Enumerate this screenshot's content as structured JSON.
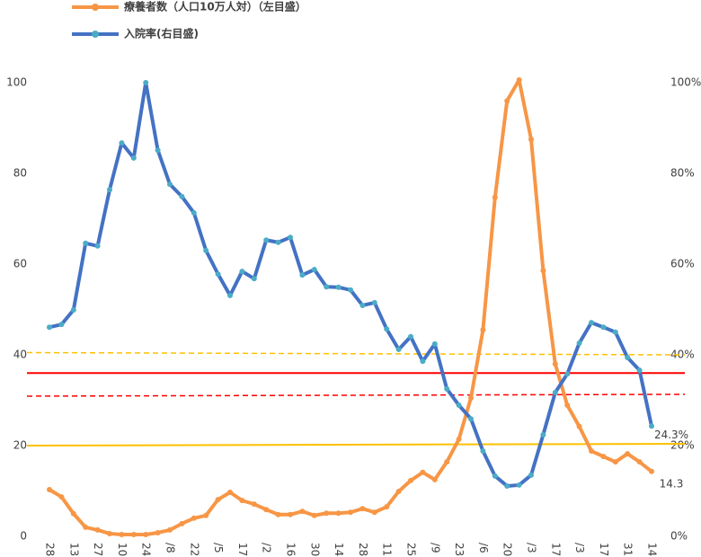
{
  "chart_data": {
    "type": "line",
    "categories": [
      "28",
      null,
      "13",
      null,
      "27",
      null,
      "10",
      null,
      "24",
      null,
      "/8",
      null,
      "22",
      null,
      "/5",
      null,
      "17",
      null,
      "/2",
      null,
      "16",
      null,
      "30",
      null,
      "14",
      null,
      "28",
      null,
      "11",
      null,
      "25",
      null,
      "/9",
      null,
      "23",
      null,
      "/6",
      null,
      "20",
      null,
      "/3",
      null,
      "17",
      null,
      "/3",
      null,
      "17",
      null,
      "31",
      null,
      "14"
    ],
    "series": [
      {
        "name": "療養者数（人口10万人対）（左目盛）",
        "color": "#f79646",
        "marker_color": "#f79646",
        "values": [
          10.3,
          8.7,
          5.0,
          2.0,
          1.4,
          0.6,
          0.4,
          0.4,
          0.4,
          0.8,
          1.4,
          2.8,
          4.0,
          4.6,
          8.1,
          9.7,
          7.9,
          7.1,
          5.9,
          4.8,
          4.8,
          5.5,
          4.6,
          5.1,
          5.1,
          5.3,
          6.1,
          5.3,
          6.5,
          9.9,
          12.3,
          14.1,
          12.5,
          16.4,
          21.4,
          30.5,
          45.5,
          74.7,
          96.0,
          100.6,
          87.5,
          58.6,
          38.0,
          28.9,
          24.2,
          18.8,
          17.6,
          16.4,
          18.2,
          16.4,
          14.3
        ],
        "value_labels": {
          "50": "14.3"
        }
      },
      {
        "name": "入院率(右目盛)",
        "color": "#4472c4",
        "marker_color": "#4bacc6",
        "axis": "y2",
        "values": [
          46.1,
          46.7,
          49.9,
          64.6,
          64.0,
          76.4,
          86.7,
          83.4,
          100,
          85.1,
          77.6,
          74.9,
          71.3,
          63.0,
          57.8,
          53.1,
          58.4,
          56.8,
          65.3,
          64.8,
          65.9,
          57.6,
          58.8,
          55.0,
          54.9,
          54.3,
          50.9,
          51.5,
          45.7,
          41.2,
          44.0,
          38.6,
          42.4,
          32.5,
          28.9,
          25.9,
          18.8,
          13.3,
          11.1,
          11.3,
          13.5,
          22.4,
          31.7,
          35.8,
          42.6,
          47.1,
          46.1,
          45.0,
          39.4,
          36.6,
          24.3
        ],
        "value_labels": {
          "50": "24.3%"
        }
      }
    ],
    "hlines": [
      {
        "color": "#ffc000",
        "dashed": true,
        "values": [
          40.5,
          40.0
        ]
      },
      {
        "color": "#ff0000",
        "dashed": false,
        "values": [
          36.0,
          36.0
        ]
      },
      {
        "color": "#ff0000",
        "dashed": true,
        "values": [
          30.9,
          31.3
        ]
      },
      {
        "color": "#ffc000",
        "dashed": false,
        "values": [
          20.0,
          20.4
        ]
      }
    ],
    "ylim": [
      0,
      100
    ],
    "yticks": [
      0,
      20,
      40,
      60,
      80,
      100
    ],
    "y2lim": [
      0,
      100
    ],
    "y2ticks": [
      {
        "value": 0,
        "label": "0%"
      },
      {
        "value": 20,
        "label": "20%"
      },
      {
        "value": 40,
        "label": "40%"
      },
      {
        "value": 60,
        "label": "60%"
      },
      {
        "value": 80,
        "label": "80%"
      },
      {
        "value": 100,
        "label": "100%"
      }
    ],
    "grid": false
  }
}
